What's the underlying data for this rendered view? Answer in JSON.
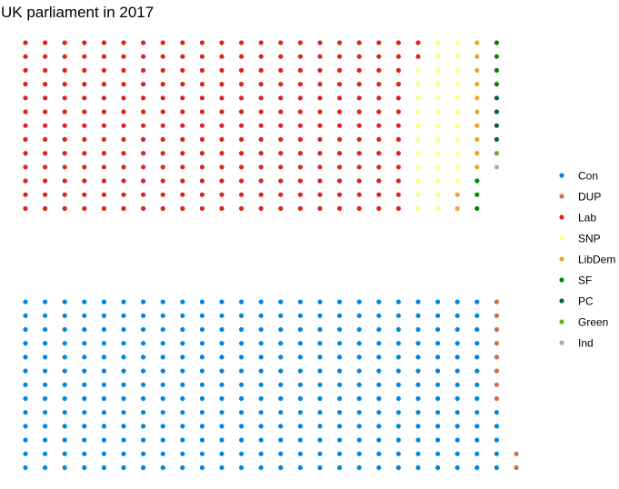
{
  "chart_data": {
    "type": "scatter",
    "subtype": "parliament-waffle",
    "title": "UK parliament in 2017",
    "parties": [
      {
        "name": "Con",
        "seats": 317,
        "color": "#0087DC"
      },
      {
        "name": "DUP",
        "seats": 10,
        "color": "#D46A4C"
      },
      {
        "name": "Lab",
        "seats": 262,
        "color": "#DC241F"
      },
      {
        "name": "SNP",
        "seats": 35,
        "color": "#FFFF80"
      },
      {
        "name": "LibDem",
        "seats": 12,
        "color": "#F0A330"
      },
      {
        "name": "SF",
        "seats": 7,
        "color": "#008800"
      },
      {
        "name": "PC",
        "seats": 4,
        "color": "#006633"
      },
      {
        "name": "Green",
        "seats": 1,
        "color": "#6AB023"
      },
      {
        "name": "Ind",
        "seats": 1,
        "color": "#AAAAAA"
      }
    ],
    "government_side": [
      "Con",
      "DUP"
    ],
    "opposition_side": [
      "Lab",
      "SNP",
      "LibDem",
      "SF",
      "PC",
      "Green",
      "Ind"
    ],
    "rows_per_bench": 13,
    "legend_position": "right",
    "grid": false,
    "axes": false
  }
}
